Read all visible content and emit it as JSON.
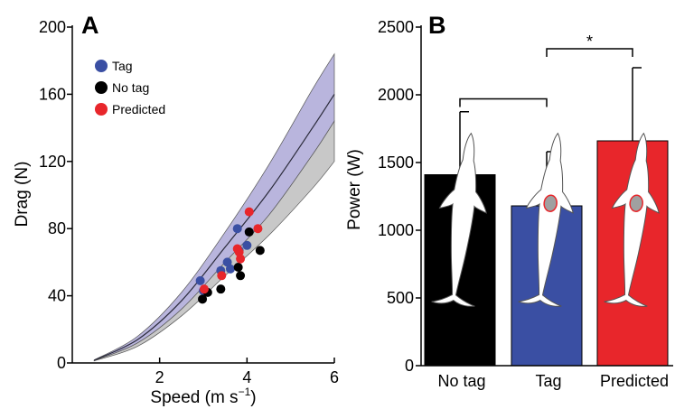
{
  "chart_data": [
    {
      "panel_label": "A",
      "type": "scatter",
      "xlabel": "Speed (m s",
      "xlabel_sup": "−1",
      "xlabel_end": ")",
      "ylabel": "Drag (N)",
      "xlim": [
        0,
        6
      ],
      "ylim": [
        0,
        200
      ],
      "xticks": [
        2,
        4,
        6
      ],
      "yticks": [
        0,
        40,
        80,
        120,
        160,
        200
      ],
      "x_tick_labels": [
        "2",
        "4",
        "6"
      ],
      "y_tick_labels": [
        "0",
        "40",
        "80",
        "120",
        "160",
        "200"
      ],
      "legend_position": "top-left",
      "series": [
        {
          "name": "Tag",
          "color": "#3a4fa3",
          "x": [
            2.93,
            3.0,
            3.4,
            3.55,
            3.62,
            3.78,
            3.82,
            4.0
          ],
          "y": [
            49,
            43,
            55,
            60,
            56,
            80,
            67,
            70
          ]
        },
        {
          "name": "No tag",
          "color": "#000000",
          "x": [
            2.98,
            3.1,
            3.4,
            3.8,
            3.85,
            4.05,
            4.3
          ],
          "y": [
            38,
            42,
            44,
            57,
            52,
            78,
            67
          ]
        },
        {
          "name": "Predicted",
          "color": "#e8262b",
          "x": [
            3.02,
            3.42,
            3.78,
            3.82,
            3.85,
            4.05,
            4.25
          ],
          "y": [
            44,
            52,
            68,
            66,
            62,
            90,
            80
          ]
        }
      ],
      "bands": [
        {
          "name": "tag band",
          "color": "#b9b5dd",
          "x": [
            0.5,
            1.5,
            2.5,
            3.5,
            4.5,
            5.5,
            6.0
          ],
          "lower": [
            1.5,
            12,
            32,
            60,
            88,
            124,
            144
          ],
          "upper": [
            1.8,
            16,
            42,
            78,
            118,
            163,
            184
          ]
        },
        {
          "name": "no-tag band",
          "color": "#c8c8c8",
          "x": [
            0.5,
            1.5,
            2.5,
            3.5,
            4.5,
            5.5,
            6.0
          ],
          "lower": [
            1.2,
            10,
            28,
            52,
            76,
            104,
            120
          ],
          "upper": [
            1.4,
            12,
            32,
            60,
            88,
            124,
            144
          ]
        }
      ],
      "fit_line": {
        "color": "#2a2a3a",
        "x": [
          0.5,
          1.5,
          2.5,
          3.5,
          4.5,
          5.5,
          6.0
        ],
        "y": [
          1.6,
          14,
          37,
          69,
          102,
          140,
          160
        ]
      }
    },
    {
      "panel_label": "B",
      "type": "bar",
      "ylabel": "Power (W)",
      "ylim": [
        0,
        2500
      ],
      "yticks": [
        0,
        500,
        1000,
        1500,
        2000,
        2500
      ],
      "y_tick_labels": [
        "0",
        "500",
        "1000",
        "1500",
        "2000",
        "2500"
      ],
      "categories": [
        "No tag",
        "Tag",
        "Predicted"
      ],
      "values": [
        1410,
        1180,
        1660
      ],
      "error_upper": [
        1875,
        1580,
        2200
      ],
      "colors": [
        "#000000",
        "#3a4fa3",
        "#e8262b"
      ],
      "significance": {
        "between": [
          "Tag",
          "Predicted"
        ],
        "label": "*"
      }
    }
  ]
}
